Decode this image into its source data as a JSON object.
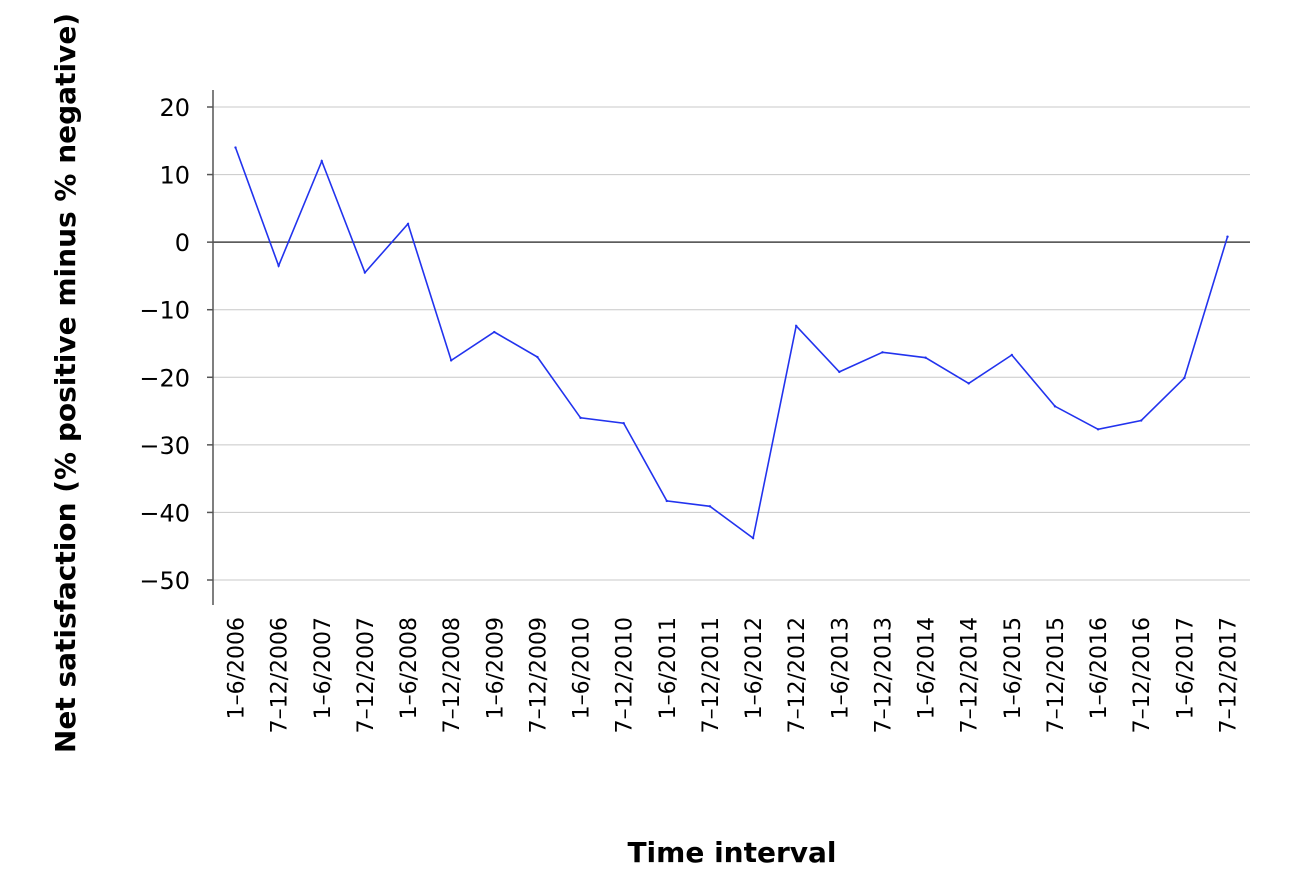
{
  "chart_data": {
    "type": "line",
    "xlabel": "Time interval",
    "ylabel": "Net satisfaction (% positive minus % negative)",
    "ylim": [
      -50,
      20
    ],
    "yticks": [
      20,
      10,
      0,
      -10,
      -20,
      -30,
      -40,
      -50
    ],
    "ytick_labels": [
      "20",
      "10",
      "0",
      "−10",
      "−20",
      "−30",
      "−40",
      "−50"
    ],
    "grid": true,
    "legend": "none",
    "categories": [
      "1–6/2006",
      "7–12/2006",
      "1–6/2007",
      "7–12/2007",
      "1–6/2008",
      "7–12/2008",
      "1–6/2009",
      "7–12/2009",
      "1–6/2010",
      "7–12/2010",
      "1–6/2011",
      "7–12/2011",
      "1–6/2012",
      "7–12/2012",
      "1–6/2013",
      "7–12/2013",
      "1–6/2014",
      "7–12/2014",
      "1–6/2015",
      "7–12/2015",
      "1–6/2016",
      "7–12/2016",
      "1–6/2017",
      "7–12/2017"
    ],
    "series": [
      {
        "color": "#2233ee",
        "values": [
          14,
          -3.5,
          12,
          -4.5,
          2.7,
          -17.5,
          -13.3,
          -17,
          -26,
          -26.8,
          -38.3,
          -39.1,
          -43.8,
          -12.4,
          -19.2,
          -16.3,
          -17.1,
          -20.9,
          -16.7,
          -24.3,
          -27.7,
          -26.4,
          -20.1,
          0.8
        ]
      }
    ]
  }
}
